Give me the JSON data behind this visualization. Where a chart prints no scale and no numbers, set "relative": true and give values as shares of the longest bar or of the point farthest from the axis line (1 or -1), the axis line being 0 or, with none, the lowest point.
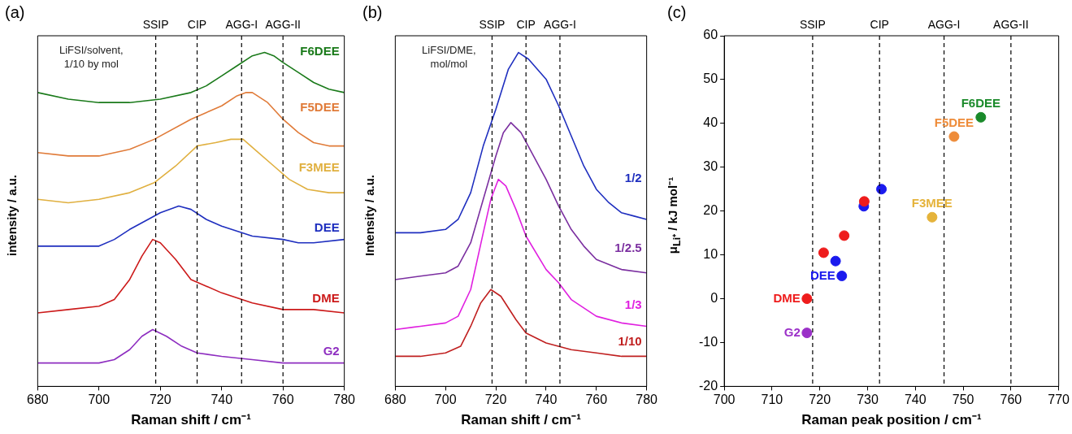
{
  "chart_data": [
    {
      "type": "line",
      "title": "(a)",
      "xlabel": "Raman shift / cm⁻¹",
      "ylabel": "intensity / a.u.",
      "relative": true,
      "xlim": [
        680,
        780
      ],
      "xticks": [
        680,
        700,
        720,
        740,
        760,
        780
      ],
      "tick_labels": "x",
      "marker": "none",
      "line_style": "solid",
      "annotations": [
        "LiFSI/solvent,\n1/10 by mol"
      ],
      "ref_lines": [
        {
          "axis": "x",
          "value": 718.5,
          "label": "SSIP",
          "line_style": "dashed"
        },
        {
          "axis": "x",
          "value": 732,
          "label": "CIP",
          "line_style": "dashed"
        },
        {
          "axis": "x",
          "value": 746.5,
          "label": "AGG-I",
          "line_style": "dashed"
        },
        {
          "axis": "x",
          "value": 760,
          "label": "AGG-II",
          "line_style": "dashed"
        }
      ],
      "series": [
        {
          "name": "F6DEE",
          "color": "#1a7a1a",
          "x": [
            680,
            690,
            700,
            710,
            720,
            730,
            735,
            740,
            745,
            750,
            754,
            757,
            760,
            765,
            770,
            775,
            780
          ],
          "values": [
            0.88,
            0.86,
            0.85,
            0.85,
            0.86,
            0.88,
            0.9,
            0.93,
            0.96,
            0.99,
            1,
            0.99,
            0.97,
            0.94,
            0.91,
            0.89,
            0.88
          ]
        },
        {
          "name": "F5DEE",
          "color": "#e07b39",
          "x": [
            680,
            690,
            700,
            710,
            718,
            730,
            740,
            745,
            748,
            750,
            755,
            760,
            765,
            770,
            775,
            780
          ],
          "values": [
            0.7,
            0.69,
            0.69,
            0.71,
            0.74,
            0.8,
            0.84,
            0.87,
            0.88,
            0.88,
            0.85,
            0.8,
            0.76,
            0.73,
            0.72,
            0.72
          ]
        },
        {
          "name": "F3MEE",
          "color": "#e0b040",
          "x": [
            680,
            690,
            700,
            710,
            718,
            725,
            732,
            738,
            743,
            747,
            752,
            757,
            762,
            768,
            775,
            780
          ],
          "values": [
            0.56,
            0.55,
            0.56,
            0.58,
            0.61,
            0.66,
            0.72,
            0.73,
            0.74,
            0.74,
            0.7,
            0.66,
            0.62,
            0.59,
            0.58,
            0.58
          ]
        },
        {
          "name": "DEE",
          "color": "#1f2fbf",
          "x": [
            680,
            690,
            700,
            705,
            710,
            716,
            720,
            726,
            730,
            735,
            740,
            750,
            760,
            765,
            770,
            780
          ],
          "values": [
            0.42,
            0.42,
            0.42,
            0.44,
            0.47,
            0.5,
            0.52,
            0.54,
            0.53,
            0.5,
            0.48,
            0.45,
            0.44,
            0.43,
            0.43,
            0.44
          ]
        },
        {
          "name": "DME",
          "color": "#cc1a1a",
          "x": [
            680,
            690,
            700,
            705,
            710,
            714,
            717.5,
            720,
            725,
            730,
            740,
            750,
            760,
            770,
            780
          ],
          "values": [
            0.22,
            0.23,
            0.24,
            0.26,
            0.32,
            0.39,
            0.44,
            0.43,
            0.38,
            0.32,
            0.28,
            0.25,
            0.23,
            0.23,
            0.22
          ]
        },
        {
          "name": "G2",
          "color": "#8e2ec0",
          "x": [
            680,
            690,
            700,
            705,
            710,
            714,
            717.5,
            722,
            727,
            732,
            740,
            750,
            760,
            780
          ],
          "values": [
            0.07,
            0.07,
            0.07,
            0.08,
            0.11,
            0.15,
            0.17,
            0.15,
            0.12,
            0.1,
            0.09,
            0.08,
            0.07,
            0.07
          ]
        }
      ]
    },
    {
      "type": "line",
      "title": "(b)",
      "xlabel": "Raman shift / cm⁻¹",
      "ylabel": "Intensity / a.u.",
      "relative": true,
      "xlim": [
        680,
        780
      ],
      "xticks": [
        680,
        700,
        720,
        740,
        760,
        780
      ],
      "tick_labels": "x",
      "marker": "none",
      "line_style": "solid",
      "annotations": [
        "LiFSI/DME,\nmol/mol"
      ],
      "ref_lines": [
        {
          "axis": "x",
          "value": 718.5,
          "label": "SSIP",
          "line_style": "dashed"
        },
        {
          "axis": "x",
          "value": 732,
          "label": "CIP",
          "line_style": "dashed"
        },
        {
          "axis": "x",
          "value": 745.5,
          "label": "AGG-I",
          "line_style": "dashed"
        }
      ],
      "series": [
        {
          "name": "1/2",
          "color": "#1f2fbf",
          "x": [
            680,
            690,
            700,
            705,
            710,
            715,
            720,
            725,
            729,
            733,
            740,
            745,
            750,
            755,
            760,
            765,
            770,
            775,
            780
          ],
          "values": [
            0.46,
            0.46,
            0.47,
            0.5,
            0.58,
            0.72,
            0.83,
            0.95,
            1,
            0.98,
            0.92,
            0.84,
            0.75,
            0.66,
            0.59,
            0.55,
            0.52,
            0.51,
            0.5
          ]
        },
        {
          "name": "1/2.5",
          "color": "#7b2fa0",
          "x": [
            680,
            690,
            700,
            705,
            710,
            715,
            720,
            723,
            726,
            730,
            735,
            740,
            745,
            750,
            755,
            760,
            770,
            780
          ],
          "values": [
            0.32,
            0.33,
            0.34,
            0.36,
            0.43,
            0.56,
            0.69,
            0.76,
            0.79,
            0.76,
            0.69,
            0.62,
            0.54,
            0.47,
            0.42,
            0.38,
            0.35,
            0.34
          ]
        },
        {
          "name": "1/3",
          "color": "#e020e0",
          "x": [
            680,
            690,
            700,
            705,
            710,
            715,
            718,
            721,
            724,
            728,
            732,
            740,
            745,
            750,
            760,
            770,
            780
          ],
          "values": [
            0.17,
            0.18,
            0.19,
            0.21,
            0.29,
            0.46,
            0.56,
            0.62,
            0.6,
            0.53,
            0.45,
            0.35,
            0.31,
            0.26,
            0.21,
            0.19,
            0.18
          ]
        },
        {
          "name": "1/10",
          "color": "#c02020",
          "x": [
            680,
            690,
            700,
            706,
            710,
            714,
            718,
            722,
            728,
            732,
            740,
            750,
            760,
            770,
            780
          ],
          "values": [
            0.09,
            0.09,
            0.1,
            0.12,
            0.18,
            0.25,
            0.29,
            0.27,
            0.2,
            0.16,
            0.13,
            0.11,
            0.1,
            0.09,
            0.09
          ]
        }
      ]
    },
    {
      "type": "scatter",
      "title": "(c)",
      "xlabel": "Raman peak position / cm⁻¹",
      "ylabel": "μ$_{Li⁺}$ / kJ mol⁻¹",
      "xlim": [
        700,
        770
      ],
      "xticks": [
        700,
        710,
        720,
        730,
        740,
        750,
        760,
        770
      ],
      "ylim": [
        -20,
        60
      ],
      "yticks": [
        -20,
        -10,
        0,
        10,
        20,
        30,
        40,
        50,
        60
      ],
      "marker": "circle",
      "ref_lines": [
        {
          "axis": "x",
          "value": 718.5,
          "label": "SSIP",
          "line_style": "dashed"
        },
        {
          "axis": "x",
          "value": 732.5,
          "label": "CIP",
          "line_style": "dashed"
        },
        {
          "axis": "x",
          "value": 746,
          "label": "AGG-I",
          "line_style": "dashed"
        },
        {
          "axis": "x",
          "value": 760,
          "label": "AGG-II",
          "line_style": "dashed"
        }
      ],
      "series": [
        {
          "name": "DME",
          "color": "#ee1c1c",
          "x": [
            717.3,
            720.8,
            725.1,
            729.3
          ],
          "values": [
            0,
            10.5,
            14.4,
            22.2
          ]
        },
        {
          "name": "DEE",
          "color": "#1a1aee",
          "x": [
            724.6,
            723.3,
            729.2,
            732.9
          ],
          "values": [
            5.2,
            8.6,
            21.1,
            25.0
          ]
        },
        {
          "name": "G2",
          "color": "#9b30c8",
          "x": [
            717.3
          ],
          "values": [
            -7.8
          ]
        },
        {
          "name": "F3MEE",
          "color": "#e5b33a",
          "x": [
            743.5
          ],
          "values": [
            18.6
          ]
        },
        {
          "name": "F5DEE",
          "color": "#ee8c3a",
          "x": [
            748.1
          ],
          "values": [
            37.0
          ]
        },
        {
          "name": "F6DEE",
          "color": "#1a8a2a",
          "x": [
            753.7
          ],
          "values": [
            41.4
          ]
        }
      ]
    }
  ]
}
